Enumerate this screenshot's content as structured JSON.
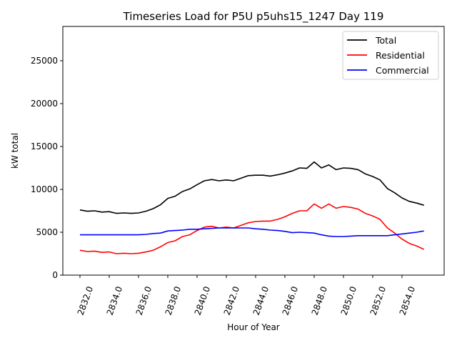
{
  "chart_data": {
    "type": "line",
    "title": "Timeseries Load for P5U p5uhs15_1247  Day 119",
    "xlabel": "Hour of Year",
    "ylabel": "kW total",
    "xlim": [
      2830.83,
      2856.88
    ],
    "ylim": [
      0,
      29000
    ],
    "x_start": 2832,
    "x_step": 0.5,
    "xticks": [
      2832,
      2834,
      2836,
      2838,
      2840,
      2842,
      2844,
      2846,
      2848,
      2850,
      2852,
      2854
    ],
    "xtick_labels": [
      "2832.0",
      "2834.0",
      "2836.0",
      "2838.0",
      "2840.0",
      "2842.0",
      "2844.0",
      "2846.0",
      "2848.0",
      "2850.0",
      "2852.0",
      "2854.0"
    ],
    "yticks": [
      0,
      5000,
      10000,
      15000,
      20000,
      25000
    ],
    "ytick_labels": [
      "0",
      "5000",
      "10000",
      "15000",
      "20000",
      "25000"
    ],
    "grid": false,
    "legend_position": "top-right",
    "series": [
      {
        "name": "Total",
        "color": "#000000",
        "values": [
          7600,
          7450,
          7500,
          7350,
          7400,
          7200,
          7250,
          7200,
          7250,
          7450,
          7750,
          8200,
          8950,
          9200,
          9750,
          10050,
          10550,
          11000,
          11150,
          11000,
          11100,
          11000,
          11300,
          11600,
          11650,
          11650,
          11550,
          11700,
          11900,
          12150,
          12500,
          12450,
          13200,
          12500,
          12850,
          12300,
          12500,
          12450,
          12300,
          11800,
          11500,
          11100,
          10100,
          9600,
          9000,
          8600,
          8400,
          8150
        ]
      },
      {
        "name": "Residential",
        "color": "#ff0000",
        "values": [
          2900,
          2750,
          2800,
          2650,
          2700,
          2500,
          2550,
          2500,
          2550,
          2700,
          2900,
          3300,
          3800,
          4000,
          4500,
          4700,
          5200,
          5600,
          5700,
          5500,
          5600,
          5500,
          5800,
          6100,
          6250,
          6300,
          6300,
          6500,
          6800,
          7200,
          7500,
          7500,
          8300,
          7800,
          8300,
          7800,
          8000,
          7900,
          7700,
          7200,
          6900,
          6500,
          5500,
          4900,
          4200,
          3700,
          3400,
          3000
        ]
      },
      {
        "name": "Commercial",
        "color": "#0000ff",
        "values": [
          4700,
          4700,
          4700,
          4700,
          4700,
          4700,
          4700,
          4700,
          4700,
          4750,
          4850,
          4900,
          5150,
          5200,
          5250,
          5350,
          5350,
          5400,
          5450,
          5500,
          5500,
          5500,
          5500,
          5500,
          5400,
          5350,
          5250,
          5200,
          5100,
          4950,
          5000,
          4950,
          4900,
          4700,
          4550,
          4500,
          4500,
          4550,
          4600,
          4600,
          4600,
          4600,
          4600,
          4700,
          4800,
          4900,
          5000,
          5150
        ]
      }
    ]
  }
}
